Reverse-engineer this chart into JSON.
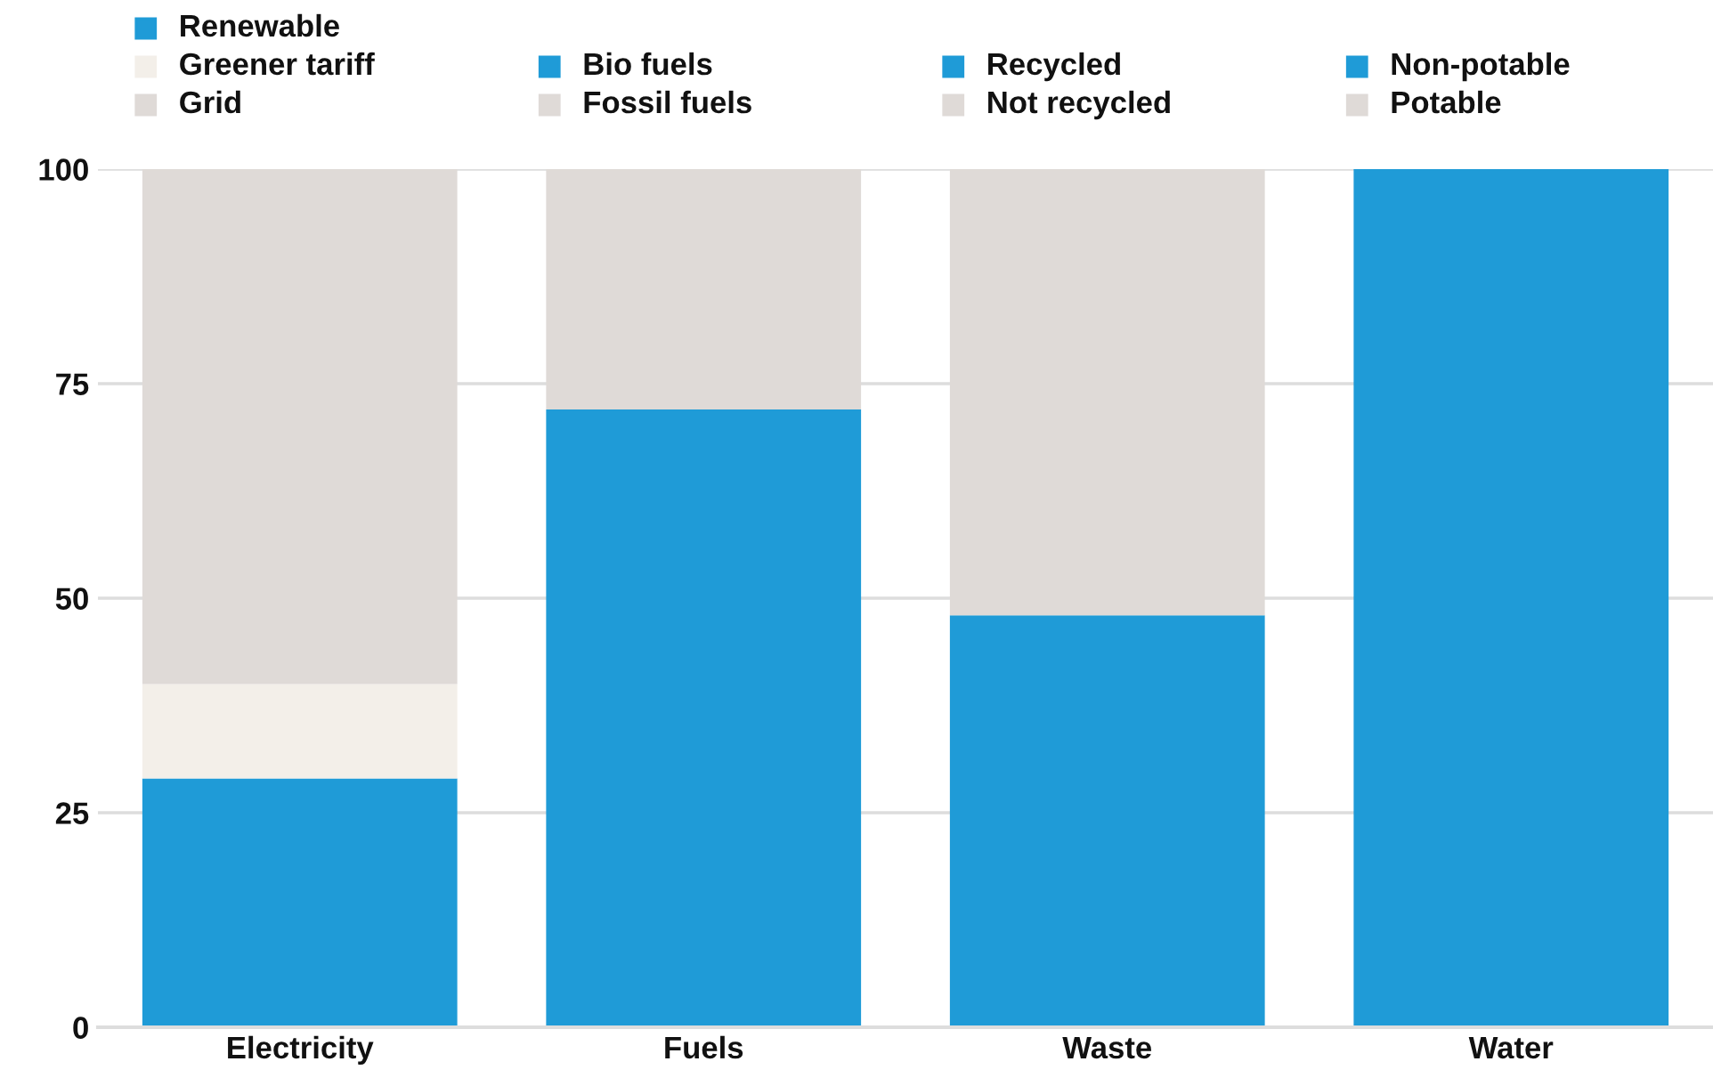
{
  "chart_data": {
    "type": "bar",
    "stacked": true,
    "categories": [
      "Electricity",
      "Fuels",
      "Waste",
      "Water"
    ],
    "series": [
      {
        "name": "Renewable",
        "color": "#1f9bd7",
        "values": [
          29,
          null,
          null,
          null
        ]
      },
      {
        "name": "Greener tariff",
        "color": "#f3efe9",
        "values": [
          11,
          null,
          null,
          null
        ]
      },
      {
        "name": "Grid",
        "color": "#dfdad7",
        "values": [
          60,
          null,
          null,
          null
        ]
      },
      {
        "name": "Bio fuels",
        "color": "#1f9bd7",
        "values": [
          null,
          72,
          null,
          null
        ]
      },
      {
        "name": "Fossil fuels",
        "color": "#dfdad7",
        "values": [
          null,
          28,
          null,
          null
        ]
      },
      {
        "name": "Recycled",
        "color": "#1f9bd7",
        "values": [
          null,
          null,
          48,
          null
        ]
      },
      {
        "name": "Not recycled",
        "color": "#dfdad7",
        "values": [
          null,
          null,
          52,
          null
        ]
      },
      {
        "name": "Non-potable",
        "color": "#1f9bd7",
        "values": [
          null,
          null,
          null,
          100
        ]
      },
      {
        "name": "Potable",
        "color": "#dfdad7",
        "values": [
          null,
          null,
          null,
          0
        ]
      }
    ],
    "ylim": [
      0,
      100
    ],
    "yticks": [
      0,
      25,
      50,
      75,
      100
    ],
    "grid": "y",
    "legend": "top"
  }
}
